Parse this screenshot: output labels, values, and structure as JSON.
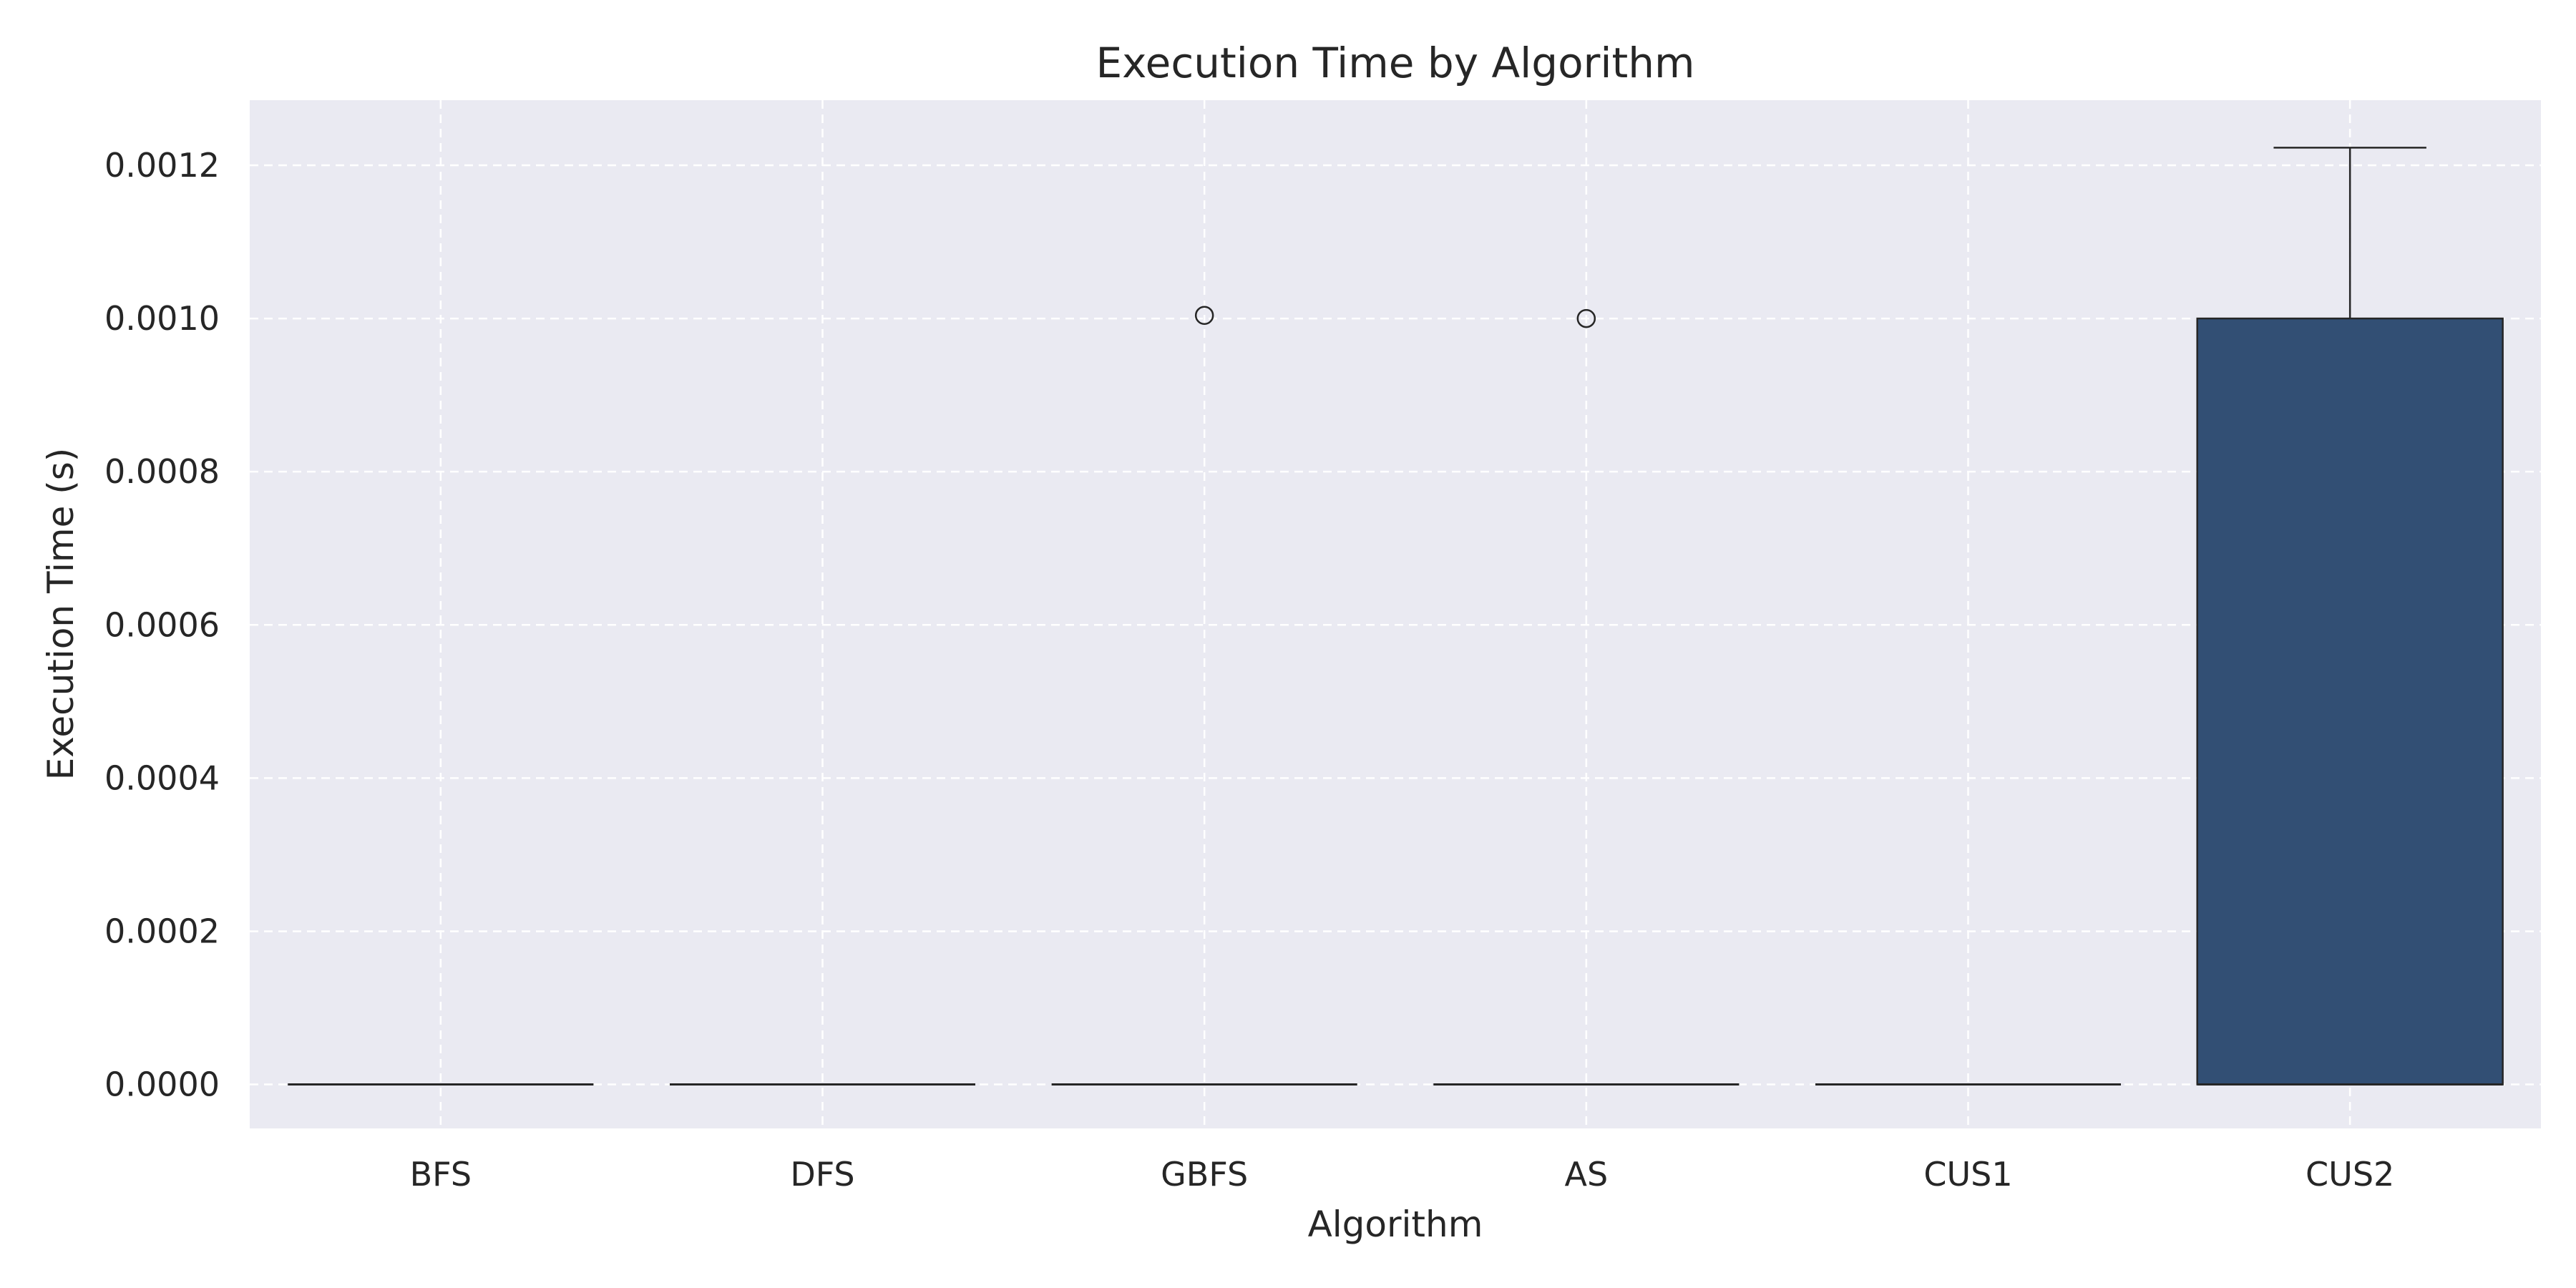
{
  "chart_data": {
    "type": "box",
    "title": "Execution Time by Algorithm",
    "xlabel": "Algorithm",
    "ylabel": "Execution Time (s)",
    "categories": [
      "BFS",
      "DFS",
      "GBFS",
      "AS",
      "CUS1",
      "CUS2"
    ],
    "ylim": [
      -5.74e-05,
      0.001285
    ],
    "yticks": [
      0,
      0.0002,
      0.0004,
      0.0006,
      0.0008,
      0.001,
      0.0012
    ],
    "ytick_labels": [
      "0.0000",
      "0.0002",
      "0.0004",
      "0.0006",
      "0.0008",
      "0.0010",
      "0.0012"
    ],
    "boxes": [
      {
        "category": "BFS",
        "q1": 0,
        "median": 0,
        "q3": 0,
        "whisker_low": 0,
        "whisker_high": 0,
        "outliers": []
      },
      {
        "category": "DFS",
        "q1": 0,
        "median": 0,
        "q3": 0,
        "whisker_low": 0,
        "whisker_high": 0,
        "outliers": []
      },
      {
        "category": "GBFS",
        "q1": 0,
        "median": 0,
        "q3": 0,
        "whisker_low": 0,
        "whisker_high": 0,
        "outliers": [
          0.001004
        ]
      },
      {
        "category": "AS",
        "q1": 0,
        "median": 0,
        "q3": 0,
        "whisker_low": 0,
        "whisker_high": 0,
        "outliers": [
          0.001
        ]
      },
      {
        "category": "CUS1",
        "q1": 0,
        "median": 0,
        "q3": 0,
        "whisker_low": 0,
        "whisker_high": 0,
        "outliers": []
      },
      {
        "category": "CUS2",
        "q1": 0,
        "median": 0,
        "q3": 0.001,
        "whisker_low": 0,
        "whisker_high": 0.001223,
        "outliers": []
      }
    ],
    "grid": true,
    "colors": {
      "background": "#eaeaf2",
      "grid": "#ffffff",
      "box_fill": "#324f74",
      "line": "#262626"
    }
  }
}
